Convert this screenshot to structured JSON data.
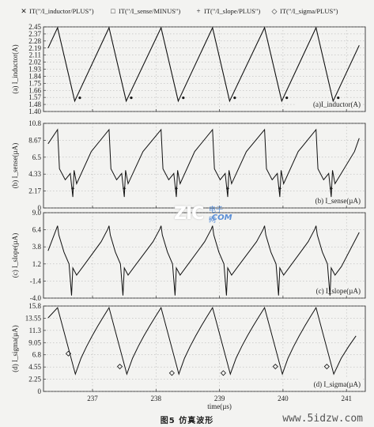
{
  "legend": [
    {
      "marker": "✕",
      "label": "IT(\"/I_inductor/PLUS\")"
    },
    {
      "marker": "□",
      "label": "IT(\"/I_sense/MINUS\")"
    },
    {
      "marker": "+",
      "label": "IT(\"/I_slope/PLUS\")"
    },
    {
      "marker": "◇",
      "label": "IT(\"/I_sigma/PLUS\")"
    }
  ],
  "x_axis": {
    "label": "time(µs)",
    "ticks": [
      "237",
      "238",
      "239",
      "240",
      "241"
    ]
  },
  "caption": "图5   仿真波形",
  "watermark": "www.5idzw.com",
  "logo": {
    "main": "ZIC",
    "cn": "电子网",
    "com": ".COM"
  },
  "chart_data": [
    {
      "type": "line",
      "panel_label": "(a)I_inductor(A)",
      "ylabel": "(a) I_inductor(A)",
      "yticks": [
        "2.45",
        "2.37",
        "2.28",
        "2.19",
        "2.11",
        "2.02",
        "1.93",
        "1.84",
        "1.75",
        "1.66",
        "1.57",
        "1.48",
        "1.40"
      ],
      "ylim": [
        1.4,
        2.45
      ],
      "xlim": [
        236.3,
        241.2
      ],
      "peaks_x": [
        236.45,
        237.26,
        238.08,
        238.89,
        239.71,
        240.52
      ],
      "valleys_x": [
        236.72,
        237.53,
        238.35,
        239.16,
        239.98,
        240.79
      ],
      "peak_value": 2.44,
      "valley_value": 1.53
    },
    {
      "type": "line",
      "panel_label": "(b) I_sense(µA)",
      "ylabel": "(b) I_sense(µA)",
      "yticks": [
        "10.8",
        "8.67",
        "6.5",
        "4.33",
        "2.17",
        "0"
      ],
      "ylim": [
        0,
        10.8
      ],
      "peak_value": 10.0,
      "valley_value": 2.9
    },
    {
      "type": "line",
      "panel_label": "(c) I_slope(µA)",
      "ylabel": "(c) I_slope(µA)",
      "yticks": [
        "9.0",
        "6.4",
        "3.8",
        "1.2",
        "-1.4",
        "-4.0"
      ],
      "ylim": [
        -4.0,
        9.0
      ],
      "peak_value": 7.0,
      "valley_value": -0.5
    },
    {
      "type": "line",
      "panel_label": "(d) I_sigma(µA)",
      "ylabel": "(d) I_sigma(µA)",
      "yticks": [
        "15.8",
        "13.55",
        "11.3",
        "9.05",
        "6.8",
        "4.55",
        "2.25",
        "0"
      ],
      "ylim": [
        0,
        15.8
      ],
      "peak_value": 15.5,
      "valley_value": 3.2
    }
  ]
}
